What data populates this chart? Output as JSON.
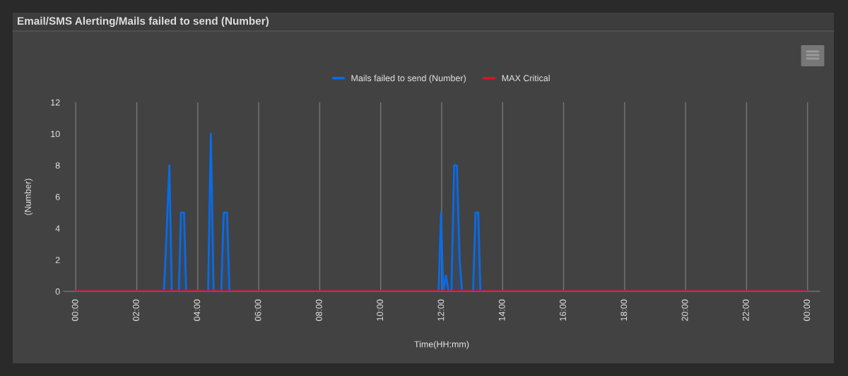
{
  "chart_data": {
    "type": "area",
    "title": "Email/SMS Alerting/Mails failed to send (Number)",
    "xlabel": "Time(HH:mm)",
    "ylabel": "(Number)",
    "series": [
      {
        "name": "Mails failed to send (Number)",
        "color": "#0a6be6",
        "x": [
          0,
          2.886,
          2.94,
          3.07,
          3.15,
          3.38,
          3.45,
          3.55,
          3.62,
          4.34,
          4.43,
          4.52,
          4.77,
          4.85,
          4.96,
          5.04,
          11.9,
          11.98,
          12.05,
          12.14,
          12.23,
          12.32,
          12.41,
          12.5,
          12.59,
          12.67,
          13.03,
          13.11,
          13.2,
          13.27,
          24
        ],
        "values": [
          0,
          0,
          2,
          8,
          0,
          0,
          5,
          5,
          0,
          0,
          10,
          0,
          0,
          5,
          5,
          0,
          0,
          5,
          0,
          1,
          0,
          0,
          8,
          8,
          2,
          0,
          0,
          5,
          5,
          0,
          0
        ]
      },
      {
        "name": "MAX Critical",
        "type": "line",
        "color": "#e0102a",
        "x": [
          0,
          24
        ],
        "values": [
          0,
          0
        ]
      }
    ],
    "xlim": [
      -0.4,
      24.4
    ],
    "xticks": [
      {
        "value": 0,
        "label": "00:00"
      },
      {
        "value": 2,
        "label": "02:00"
      },
      {
        "value": 4,
        "label": "04:00"
      },
      {
        "value": 6,
        "label": "06:00"
      },
      {
        "value": 8,
        "label": "08:00"
      },
      {
        "value": 10,
        "label": "10:00"
      },
      {
        "value": 12,
        "label": "12:00"
      },
      {
        "value": 14,
        "label": "14:00"
      },
      {
        "value": 16,
        "label": "16:00"
      },
      {
        "value": 18,
        "label": "18:00"
      },
      {
        "value": 20,
        "label": "20:00"
      },
      {
        "value": 22,
        "label": "22:00"
      },
      {
        "value": 24,
        "label": "00:00"
      }
    ],
    "ylim": [
      0,
      12
    ],
    "yticks": [
      0,
      2,
      4,
      6,
      8,
      10,
      12
    ],
    "grid": "x",
    "legend": "top",
    "marker": "none",
    "line_style": "solid"
  }
}
